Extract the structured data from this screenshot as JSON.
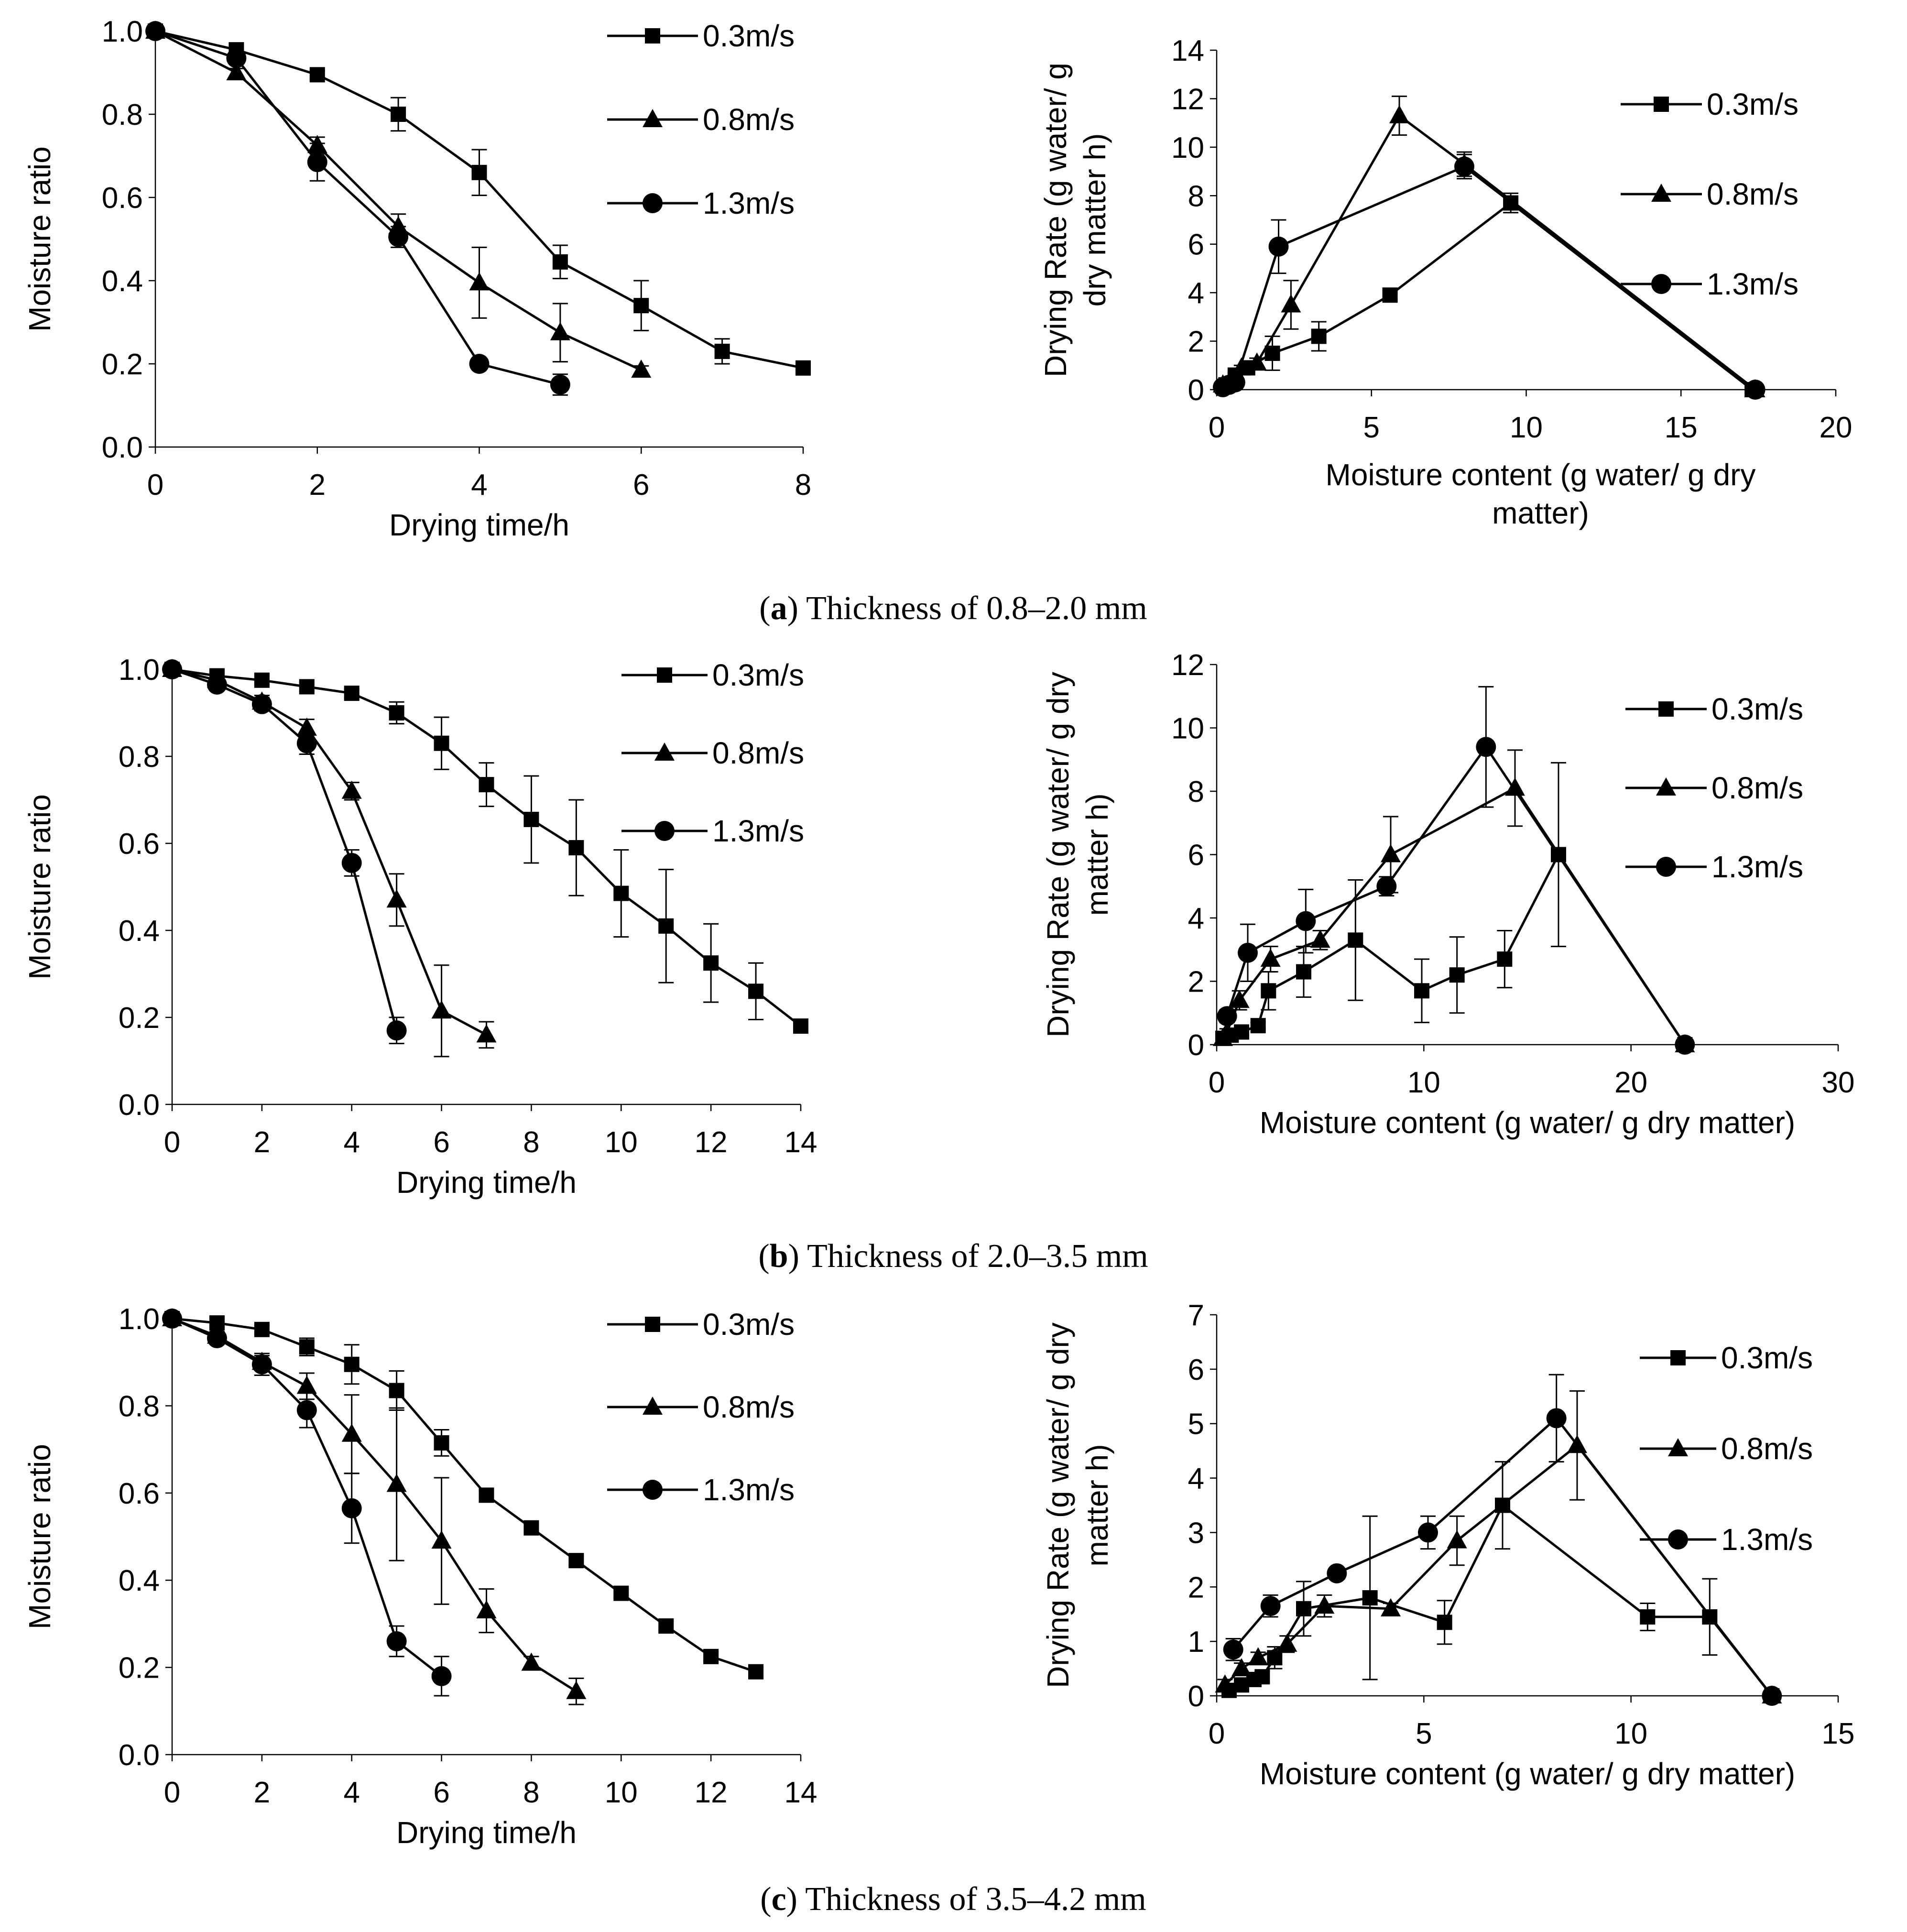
{
  "captions": [
    {
      "letter": "a",
      "text": "Thickness of 0.8–2.0 mm"
    },
    {
      "letter": "b",
      "text": "Thickness of 2.0–3.5 mm"
    },
    {
      "letter": "c",
      "text": "Thickness of 3.5–4.2 mm"
    }
  ],
  "chart_data": [
    {
      "id": "a-left",
      "type": "line",
      "xlabel": "Drying time/h",
      "ylabel": "Moisture ratio",
      "xlim": [
        0,
        8
      ],
      "ylim": [
        0.0,
        1.0
      ],
      "xticks": [
        "0",
        "2",
        "4",
        "6",
        "8"
      ],
      "yticks": [
        "0.0",
        "0.2",
        "0.4",
        "0.6",
        "0.8",
        "1.0"
      ],
      "series": [
        {
          "name": "0.3m/s",
          "marker": "square",
          "x": [
            0,
            1,
            2,
            3,
            4,
            5,
            6,
            7,
            8
          ],
          "y": [
            1.0,
            0.955,
            0.895,
            0.8,
            0.66,
            0.445,
            0.34,
            0.23,
            0.19
          ],
          "err": [
            0,
            0.01,
            0.01,
            0.04,
            0.055,
            0.04,
            0.06,
            0.03,
            0.01
          ]
        },
        {
          "name": "0.8m/s",
          "marker": "triangle",
          "x": [
            0,
            1,
            2,
            3,
            4,
            5,
            6
          ],
          "y": [
            1.0,
            0.9,
            0.725,
            0.53,
            0.395,
            0.275,
            0.185
          ],
          "err": [
            0,
            0.01,
            0.02,
            0.03,
            0.085,
            0.07,
            0.01
          ]
        },
        {
          "name": "1.3m/s",
          "marker": "circle",
          "x": [
            0,
            1,
            2,
            3,
            4,
            5
          ],
          "y": [
            1.0,
            0.935,
            0.685,
            0.505,
            0.2,
            0.15
          ],
          "err": [
            0,
            0.01,
            0.045,
            0.025,
            0.01,
            0.025
          ]
        }
      ]
    },
    {
      "id": "a-right",
      "type": "line",
      "xlabel": "Moisture content (g water/ g dry matter)",
      "xlabel_lines": [
        "Moisture content (g water/ g dry",
        "matter)"
      ],
      "ylabel": "Drying Rate (g water/ g dry matter h)",
      "ylabel_lines": [
        "Drying Rate (g water/ g",
        "dry matter h)"
      ],
      "xlim": [
        0,
        20
      ],
      "ylim": [
        0,
        14
      ],
      "xticks": [
        "0",
        "5",
        "10",
        "15",
        "20"
      ],
      "yticks": [
        "0",
        "2",
        "4",
        "6",
        "8",
        "10",
        "12",
        "14"
      ],
      "series": [
        {
          "name": "0.3m/s",
          "marker": "square",
          "x": [
            0.3,
            0.6,
            1.0,
            1.8,
            3.3,
            5.6,
            9.5,
            17.3
          ],
          "y": [
            0.2,
            0.6,
            0.9,
            1.5,
            2.2,
            3.9,
            7.7,
            0.0
          ],
          "err": [
            0.1,
            0.1,
            0.15,
            0.7,
            0.6,
            0.2,
            0.4,
            0.1
          ]
        },
        {
          "name": "0.8m/s",
          "marker": "triangle",
          "x": [
            0.2,
            0.5,
            0.8,
            1.3,
            2.4,
            5.9,
            8.0,
            17.4
          ],
          "y": [
            0.2,
            0.4,
            0.9,
            1.1,
            3.5,
            11.3,
            9.3,
            0.0
          ],
          "err": [
            0.1,
            0.1,
            0.1,
            0.2,
            1.0,
            0.8,
            0.5,
            0.1
          ]
        },
        {
          "name": "1.3m/s",
          "marker": "circle",
          "x": [
            0.2,
            0.4,
            0.6,
            2.0,
            8.0,
            17.4
          ],
          "y": [
            0.1,
            0.2,
            0.3,
            5.9,
            9.2,
            0.0
          ],
          "err": [
            0.1,
            0.1,
            0.1,
            1.1,
            0.5,
            0.1
          ]
        }
      ]
    },
    {
      "id": "b-left",
      "type": "line",
      "xlabel": "Drying time/h",
      "ylabel": "Moisture ratio",
      "xlim": [
        0,
        14
      ],
      "ylim": [
        0.0,
        1.0
      ],
      "xticks": [
        "0",
        "2",
        "4",
        "6",
        "8",
        "10",
        "12",
        "14"
      ],
      "yticks": [
        "0.0",
        "0.2",
        "0.4",
        "0.6",
        "0.8",
        "1.0"
      ],
      "series": [
        {
          "name": "0.3m/s",
          "marker": "square",
          "x": [
            0,
            1,
            2,
            3,
            4,
            5,
            6,
            7,
            8,
            9,
            10,
            11,
            12,
            13,
            14
          ],
          "y": [
            1.0,
            0.985,
            0.975,
            0.96,
            0.945,
            0.9,
            0.83,
            0.735,
            0.655,
            0.59,
            0.485,
            0.41,
            0.325,
            0.26,
            0.18
          ],
          "err": [
            0,
            0.01,
            0.01,
            0.01,
            0.01,
            0.025,
            0.06,
            0.05,
            0.1,
            0.11,
            0.1,
            0.13,
            0.09,
            0.065,
            0.01
          ]
        },
        {
          "name": "0.8m/s",
          "marker": "triangle",
          "x": [
            0,
            1,
            2,
            3,
            4,
            5,
            6,
            7
          ],
          "y": [
            1.0,
            0.975,
            0.925,
            0.865,
            0.72,
            0.47,
            0.215,
            0.16
          ],
          "err": [
            0,
            0.01,
            0.015,
            0.02,
            0.02,
            0.06,
            0.105,
            0.03
          ]
        },
        {
          "name": "1.3m/s",
          "marker": "circle",
          "x": [
            0,
            1,
            2,
            3,
            4,
            5
          ],
          "y": [
            1.0,
            0.965,
            0.92,
            0.83,
            0.555,
            0.17
          ],
          "err": [
            0,
            0.01,
            0.015,
            0.025,
            0.03,
            0.03
          ]
        }
      ]
    },
    {
      "id": "b-right",
      "type": "line",
      "xlabel": "Moisture content (g water/ g dry matter)",
      "xlabel_lines": [
        "Moisture content (g water/ g dry matter)"
      ],
      "ylabel": "Drying Rate (g water/ g dry matter h)",
      "ylabel_lines": [
        "Drying Rate (g water/ g dry",
        "matter h)"
      ],
      "xlim": [
        0,
        30
      ],
      "ylim": [
        0,
        12
      ],
      "xticks": [
        "0",
        "10",
        "20",
        "30"
      ],
      "yticks": [
        "0",
        "2",
        "4",
        "6",
        "8",
        "10",
        "12"
      ],
      "series": [
        {
          "name": "0.3m/s",
          "marker": "square",
          "x": [
            0.3,
            0.7,
            1.2,
            2.0,
            2.5,
            4.2,
            6.7,
            9.9,
            11.6,
            13.9,
            16.5,
            22.6
          ],
          "y": [
            0.2,
            0.3,
            0.4,
            0.6,
            1.7,
            2.3,
            3.3,
            1.7,
            2.2,
            2.7,
            6.0,
            0.0
          ],
          "err": [
            0.1,
            0.1,
            0.1,
            0.1,
            0.6,
            0.8,
            1.9,
            1.0,
            1.2,
            0.9,
            2.9,
            0.1
          ]
        },
        {
          "name": "0.8m/s",
          "marker": "triangle",
          "x": [
            0.3,
            0.5,
            1.1,
            2.6,
            5.0,
            8.4,
            14.4,
            22.6
          ],
          "y": [
            0.2,
            0.4,
            1.4,
            2.7,
            3.3,
            6.0,
            8.1,
            0.0
          ],
          "err": [
            0.1,
            0.1,
            0.3,
            0.4,
            0.3,
            1.2,
            1.2,
            0.1
          ]
        },
        {
          "name": "1.3m/s",
          "marker": "circle",
          "x": [
            0.5,
            1.5,
            4.3,
            8.2,
            13.0,
            22.6
          ],
          "y": [
            0.9,
            2.9,
            3.9,
            5.0,
            9.4,
            0.0
          ],
          "err": [
            0.2,
            0.9,
            1.0,
            0.3,
            1.9,
            0.1
          ]
        }
      ]
    },
    {
      "id": "c-left",
      "type": "line",
      "xlabel": "Drying time/h",
      "ylabel": "Moisture ratio",
      "xlim": [
        0,
        14
      ],
      "ylim": [
        0.0,
        1.0
      ],
      "xticks": [
        "0",
        "2",
        "4",
        "6",
        "8",
        "10",
        "12",
        "14"
      ],
      "yticks": [
        "0.0",
        "0.2",
        "0.4",
        "0.6",
        "0.8",
        "1.0"
      ],
      "series": [
        {
          "name": "0.3m/s",
          "marker": "square",
          "x": [
            0,
            1,
            2,
            3,
            4,
            5,
            6,
            7,
            8,
            9,
            10,
            11,
            12,
            13
          ],
          "y": [
            1.0,
            0.99,
            0.975,
            0.935,
            0.895,
            0.835,
            0.715,
            0.595,
            0.52,
            0.445,
            0.37,
            0.295,
            0.225,
            0.19
          ],
          "err": [
            0,
            0.01,
            0.01,
            0.02,
            0.045,
            0.045,
            0.03,
            0.01,
            0.01,
            0.01,
            0.01,
            0.01,
            0.01,
            0.01
          ]
        },
        {
          "name": "0.8m/s",
          "marker": "triangle",
          "x": [
            0,
            1,
            2,
            3,
            4,
            5,
            6,
            7,
            8,
            9
          ],
          "y": [
            1.0,
            0.96,
            0.9,
            0.845,
            0.735,
            0.62,
            0.49,
            0.33,
            0.21,
            0.145
          ],
          "err": [
            0,
            0.01,
            0.015,
            0.03,
            0.09,
            0.175,
            0.145,
            0.05,
            0.015,
            0.03
          ]
        },
        {
          "name": "1.3m/s",
          "marker": "circle",
          "x": [
            0,
            1,
            2,
            3,
            4,
            5,
            6
          ],
          "y": [
            1.0,
            0.955,
            0.895,
            0.79,
            0.565,
            0.26,
            0.18
          ],
          "err": [
            0,
            0.01,
            0.025,
            0.04,
            0.08,
            0.035,
            0.045
          ]
        }
      ]
    },
    {
      "id": "c-right",
      "type": "line",
      "xlabel": "Moisture content (g water/ g dry matter)",
      "xlabel_lines": [
        "Moisture content (g water/ g dry matter)"
      ],
      "ylabel": "Drying Rate (g water/ g dry matter h)",
      "ylabel_lines": [
        "Drying Rate (g water/ g dry",
        "matter h)"
      ],
      "xlim": [
        0,
        15
      ],
      "ylim": [
        0,
        7
      ],
      "xticks": [
        "0",
        "5",
        "10",
        "15"
      ],
      "yticks": [
        "0",
        "1",
        "2",
        "3",
        "4",
        "5",
        "6",
        "7"
      ],
      "series": [
        {
          "name": "0.3m/s",
          "marker": "square",
          "x": [
            0.3,
            0.6,
            0.9,
            1.1,
            1.4,
            2.1,
            3.7,
            5.5,
            6.9,
            10.4,
            11.9,
            13.4
          ],
          "y": [
            0.1,
            0.2,
            0.3,
            0.35,
            0.7,
            1.6,
            1.8,
            1.35,
            3.5,
            1.45,
            1.45,
            0.0
          ],
          "err": [
            0.05,
            0.1,
            0.1,
            0.1,
            0.2,
            0.5,
            1.5,
            0.4,
            0.8,
            0.25,
            0.7,
            0.05
          ]
        },
        {
          "name": "0.8m/s",
          "marker": "triangle",
          "x": [
            0.2,
            0.6,
            1.0,
            1.7,
            2.6,
            4.2,
            5.8,
            8.7,
            13.4
          ],
          "y": [
            0.2,
            0.5,
            0.7,
            0.95,
            1.65,
            1.6,
            2.85,
            4.6,
            0.0
          ],
          "err": [
            0.1,
            0.1,
            0.1,
            0.15,
            0.2,
            0.1,
            0.45,
            1.0,
            0.05
          ]
        },
        {
          "name": "1.3m/s",
          "marker": "circle",
          "x": [
            0.4,
            1.3,
            2.9,
            5.1,
            8.2,
            13.4
          ],
          "y": [
            0.85,
            1.65,
            2.25,
            3.0,
            5.1,
            0.0
          ],
          "err": [
            0.2,
            0.2,
            0.1,
            0.3,
            0.8,
            0.05
          ]
        }
      ]
    }
  ]
}
